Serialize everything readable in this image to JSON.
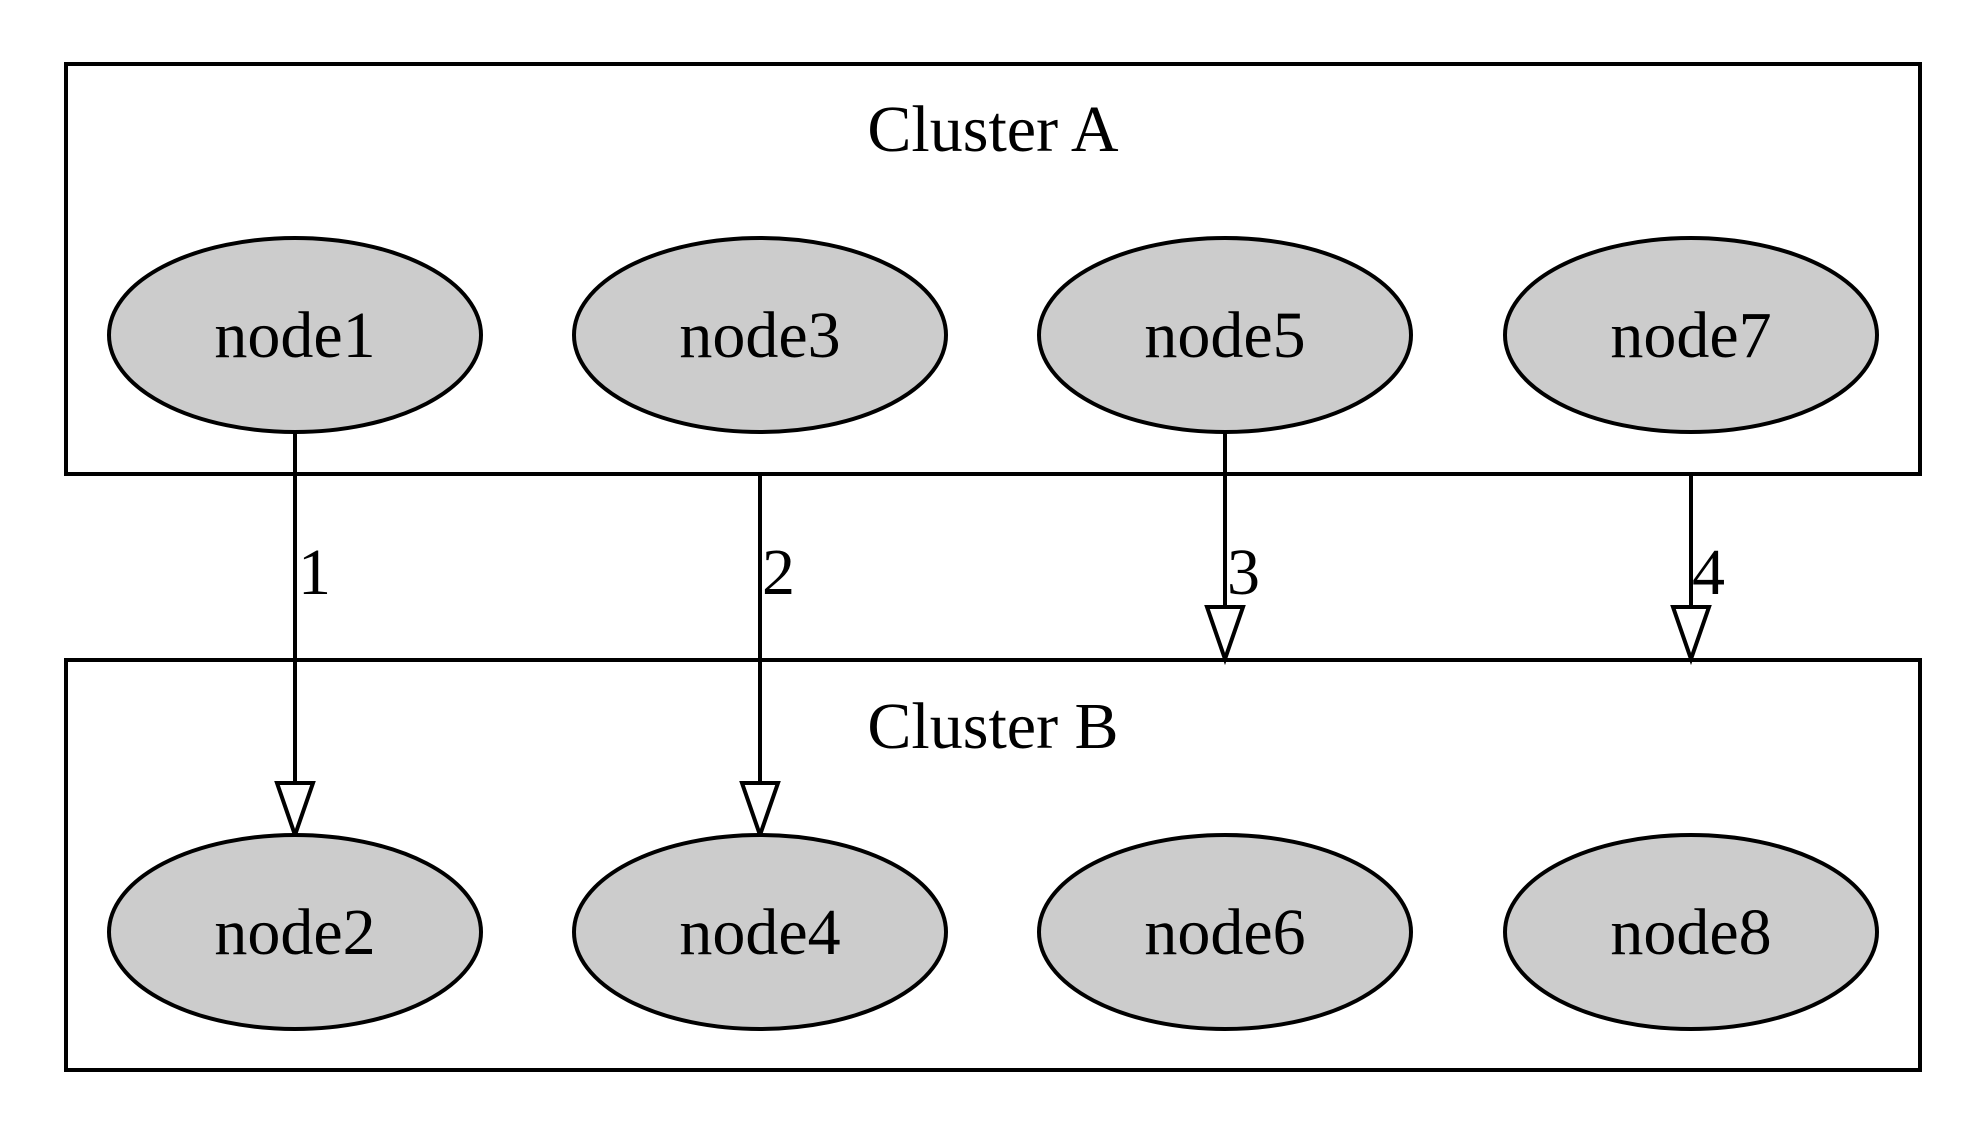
{
  "clusters": {
    "a": {
      "title": "Cluster A"
    },
    "b": {
      "title": "Cluster B"
    }
  },
  "nodes": {
    "node1": {
      "label": "node1"
    },
    "node2": {
      "label": "node2"
    },
    "node3": {
      "label": "node3"
    },
    "node4": {
      "label": "node4"
    },
    "node5": {
      "label": "node5"
    },
    "node6": {
      "label": "node6"
    },
    "node7": {
      "label": "node7"
    },
    "node8": {
      "label": "node8"
    }
  },
  "edges": [
    {
      "from": "node1",
      "to": "node2",
      "label": "1"
    },
    {
      "from": "Cluster A",
      "to": "node4",
      "label": "2"
    },
    {
      "from": "node5",
      "to": "Cluster B",
      "label": "3"
    },
    {
      "from": "Cluster A",
      "to": "Cluster B",
      "label": "4"
    }
  ],
  "colors": {
    "node_fill": "#cccccc",
    "stroke": "#000000",
    "background": "#ffffff"
  }
}
